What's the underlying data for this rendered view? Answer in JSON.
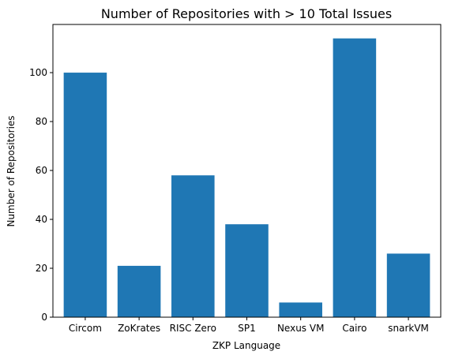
{
  "chart_data": {
    "type": "bar",
    "title": "Number of Repositories with > 10 Total Issues",
    "xlabel": "ZKP Language",
    "ylabel": "Number of Repositories",
    "categories": [
      "Circom",
      "ZoKrates",
      "RISC Zero",
      "SP1",
      "Nexus VM",
      "Cairo",
      "snarkVM"
    ],
    "values": [
      100,
      21,
      58,
      38,
      6,
      114,
      26
    ],
    "ylim": [
      0,
      119.7
    ],
    "yticks": [
      0,
      20,
      40,
      60,
      80,
      100
    ],
    "grid": false,
    "bar_color": "#1f77b4"
  }
}
